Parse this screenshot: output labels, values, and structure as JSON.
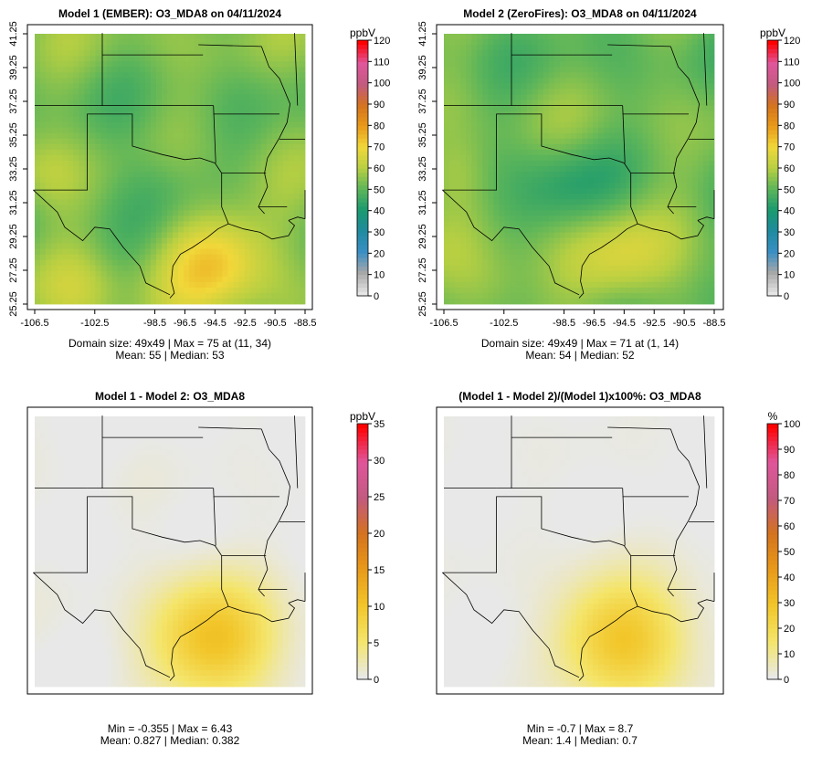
{
  "chart_data": [
    {
      "type": "heatmap",
      "title": "Model 1 (EMBER): O3_MDA8 on 04/11/2024",
      "x_ticks": [
        "-106.5",
        "-102.5",
        "-98.5",
        "-96.5",
        "-94.5",
        "-92.5",
        "-90.5",
        "-88.5"
      ],
      "y_ticks": [
        "25.25",
        "27.25",
        "29.25",
        "31.25",
        "33.25",
        "35.25",
        "37.25",
        "39.25",
        "41.25"
      ],
      "colorbar": {
        "unit": "ppbV",
        "min": 0,
        "max": 120,
        "ticks": [
          "0",
          "10",
          "20",
          "30",
          "40",
          "50",
          "60",
          "70",
          "80",
          "90",
          "100",
          "110",
          "120"
        ]
      },
      "stats_line1": "Domain size: 49x49 | Max = 75 at (11, 34)",
      "stats_line2": "Mean: 55 |  Median: 53",
      "field": {
        "kind": "absolute",
        "mean": 55,
        "max": 75
      }
    },
    {
      "type": "heatmap",
      "title": "Model 2 (ZeroFires): O3_MDA8 on 04/11/2024",
      "x_ticks": [
        "-106.5",
        "-102.5",
        "-98.5",
        "-96.5",
        "-94.5",
        "-92.5",
        "-90.5",
        "-88.5"
      ],
      "y_ticks": [
        "25.25",
        "27.25",
        "29.25",
        "31.25",
        "33.25",
        "35.25",
        "37.25",
        "39.25",
        "41.25"
      ],
      "colorbar": {
        "unit": "ppbV",
        "min": 0,
        "max": 120,
        "ticks": [
          "0",
          "10",
          "20",
          "30",
          "40",
          "50",
          "60",
          "70",
          "80",
          "90",
          "100",
          "110",
          "120"
        ]
      },
      "stats_line1": "Domain size: 49x49 | Max = 71 at (1, 14)",
      "stats_line2": "Mean: 54 |  Median: 52",
      "field": {
        "kind": "absolute",
        "mean": 54,
        "max": 71
      }
    },
    {
      "type": "heatmap",
      "title": "Model 1 - Model 2: O3_MDA8",
      "colorbar": {
        "unit": "ppbV",
        "min": 0,
        "max": 35,
        "ticks": [
          "0",
          "5",
          "10",
          "15",
          "20",
          "25",
          "30",
          "35"
        ]
      },
      "stats_line1": "Min = -0.355 | Max = 6.43",
      "stats_line2": "Mean: 0.827 |  Median: 0.382",
      "field": {
        "kind": "difference",
        "min": -0.355,
        "max": 6.43
      }
    },
    {
      "type": "heatmap",
      "title": "(Model 1 - Model 2)/(Model 1)x100%: O3_MDA8",
      "colorbar": {
        "unit": "%",
        "min": 0,
        "max": 100,
        "ticks": [
          "0",
          "10",
          "20",
          "30",
          "40",
          "50",
          "60",
          "70",
          "80",
          "90",
          "100"
        ]
      },
      "stats_line1": "Min = -0.7 | Max = 8.7",
      "stats_line2": "Mean: 1.4 |  Median: 0.7",
      "field": {
        "kind": "percent",
        "min": -0.7,
        "max": 8.7
      }
    }
  ],
  "colors": {
    "scale_absolute": [
      "#e6e6e6",
      "#a8a8a8",
      "#3a8fc4",
      "#1f8aa0",
      "#1a9a6e",
      "#5cb55a",
      "#b7cf42",
      "#f1d83a",
      "#e99a19",
      "#d4731e",
      "#c25a80",
      "#e0569b",
      "#ff0000"
    ],
    "scale_difference": [
      "#e8e8e8",
      "#f4e56a",
      "#f2c62a",
      "#e99a19",
      "#d4731e",
      "#c25a80",
      "#e0569b",
      "#ff0000"
    ]
  }
}
